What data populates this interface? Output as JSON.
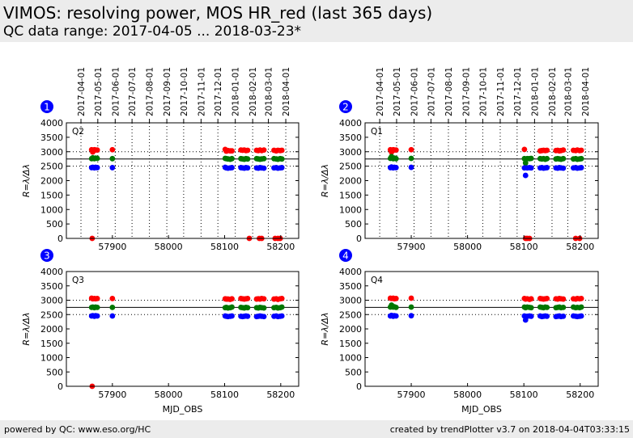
{
  "header": {
    "title": "VIMOS: resolving power, MOS HR_red (last 365 days)",
    "subtitle": "QC data range: 2017-04-05 ... 2018-03-23*"
  },
  "footer": {
    "left": "powered by QC: www.eso.org/HC",
    "right": "created by trendPlotter v3.7 on 2018-04-04T03:33:15"
  },
  "colors": {
    "red": "#ff0000",
    "green": "#007700",
    "blue": "#0000ff",
    "badge": "#0000ff"
  },
  "chart_data": [
    {
      "type": "scatter",
      "panel_number": "1",
      "quadrant_label": "Q2",
      "xlabel": "",
      "ylabel": "R=λ/Δλ",
      "xlim": [
        57818,
        58232
      ],
      "ylim": [
        0,
        4000
      ],
      "xticks": [
        57900,
        58000,
        58100,
        58200
      ],
      "yticks": [
        0,
        500,
        1000,
        1500,
        2000,
        2500,
        3000,
        3500,
        4000
      ],
      "date_ticks": [
        "2017-04-01",
        "2017-05-01",
        "2017-06-01",
        "2017-07-01",
        "2017-08-01",
        "2017-09-01",
        "2017-10-01",
        "2017-11-01",
        "2017-12-01",
        "2018-01-01",
        "2018-02-01",
        "2018-03-01",
        "2018-04-01"
      ],
      "date_ticks_mjd": [
        57844,
        57874,
        57905,
        57935,
        57966,
        57997,
        58027,
        58058,
        58088,
        58119,
        58150,
        58178,
        58209
      ],
      "hlines_solid": [
        2750
      ],
      "hlines_dotted": [
        3000,
        2500
      ],
      "series": [
        {
          "color": "red",
          "x": [
            57863,
            57865,
            57868,
            57870,
            57873,
            57900,
            58101,
            58103,
            58106,
            58110,
            58113,
            58129,
            58132,
            58135,
            58138,
            58141,
            58157,
            58160,
            58163,
            58166,
            58170,
            58188,
            58192,
            58195,
            58199,
            58202,
            57864,
            58144,
            58162,
            58166,
            58190,
            58195,
            58199
          ],
          "y": [
            3070,
            2990,
            3070,
            3060,
            3060,
            3070,
            3080,
            3020,
            3040,
            3030,
            3030,
            3060,
            3050,
            3060,
            3040,
            3050,
            3050,
            3040,
            3060,
            3040,
            3060,
            3050,
            3030,
            3050,
            3040,
            3050,
            0,
            0,
            0,
            0,
            0,
            0,
            0
          ]
        },
        {
          "color": "green",
          "x": [
            57863,
            57865,
            57868,
            57870,
            57873,
            57900,
            58101,
            58103,
            58106,
            58110,
            58113,
            58129,
            58132,
            58135,
            58138,
            58141,
            58157,
            58160,
            58163,
            58166,
            58170,
            58188,
            58192,
            58195,
            58199,
            58202
          ],
          "y": [
            2760,
            2790,
            2760,
            2780,
            2770,
            2760,
            2770,
            2760,
            2750,
            2740,
            2760,
            2760,
            2750,
            2740,
            2760,
            2750,
            2760,
            2750,
            2740,
            2750,
            2760,
            2760,
            2750,
            2740,
            2760,
            2750
          ]
        },
        {
          "color": "blue",
          "x": [
            57863,
            57865,
            57868,
            57870,
            57873,
            57900,
            58101,
            58103,
            58106,
            58110,
            58113,
            58129,
            58132,
            58135,
            58138,
            58141,
            58157,
            58160,
            58163,
            58166,
            58170,
            58188,
            58192,
            58195,
            58199,
            58202
          ],
          "y": [
            2450,
            2460,
            2440,
            2460,
            2450,
            2450,
            2460,
            2440,
            2430,
            2440,
            2450,
            2450,
            2440,
            2430,
            2450,
            2440,
            2440,
            2430,
            2450,
            2440,
            2430,
            2440,
            2450,
            2430,
            2440,
            2450
          ]
        }
      ]
    },
    {
      "type": "scatter",
      "panel_number": "2",
      "quadrant_label": "Q1",
      "xlabel": "",
      "ylabel": "R=λ/Δλ",
      "xlim": [
        57818,
        58232
      ],
      "ylim": [
        0,
        4000
      ],
      "xticks": [
        57900,
        58000,
        58100,
        58200
      ],
      "yticks": [
        0,
        500,
        1000,
        1500,
        2000,
        2500,
        3000,
        3500,
        4000
      ],
      "date_ticks": [
        "2017-04-01",
        "2017-05-01",
        "2017-06-01",
        "2017-07-01",
        "2017-08-01",
        "2017-09-01",
        "2017-10-01",
        "2017-11-01",
        "2017-12-01",
        "2018-01-01",
        "2018-02-01",
        "2018-03-01",
        "2018-04-01"
      ],
      "date_ticks_mjd": [
        57844,
        57874,
        57905,
        57935,
        57966,
        57997,
        58027,
        58058,
        58088,
        58119,
        58150,
        58178,
        58209
      ],
      "hlines_solid": [
        2750
      ],
      "hlines_dotted": [
        3000,
        2500
      ],
      "series": [
        {
          "color": "red",
          "x": [
            57863,
            57865,
            57868,
            57870,
            57873,
            57900,
            58101,
            58129,
            58132,
            58135,
            58138,
            58141,
            58157,
            58160,
            58163,
            58166,
            58170,
            58188,
            58192,
            58195,
            58199,
            58202,
            58103,
            58106,
            58110,
            58192,
            58199
          ],
          "y": [
            3070,
            2990,
            3070,
            3060,
            3060,
            3070,
            3080,
            3030,
            3040,
            3050,
            3040,
            3050,
            3040,
            3050,
            3030,
            3040,
            3060,
            3050,
            3040,
            3060,
            3040,
            3050,
            0,
            0,
            0,
            0,
            0
          ]
        },
        {
          "color": "green",
          "x": [
            57863,
            57865,
            57868,
            57870,
            57873,
            57900,
            58101,
            58103,
            58106,
            58110,
            58113,
            58129,
            58132,
            58135,
            58138,
            58141,
            58157,
            58160,
            58163,
            58166,
            58170,
            58188,
            58192,
            58195,
            58199,
            58202
          ],
          "y": [
            2770,
            2830,
            2760,
            2780,
            2760,
            2770,
            2760,
            2610,
            2760,
            2760,
            2770,
            2760,
            2750,
            2760,
            2740,
            2760,
            2750,
            2760,
            2750,
            2740,
            2760,
            2750,
            2760,
            2740,
            2750,
            2760
          ]
        },
        {
          "color": "blue",
          "x": [
            57863,
            57865,
            57868,
            57870,
            57873,
            57900,
            58101,
            58103,
            58106,
            58110,
            58113,
            58129,
            58132,
            58135,
            58138,
            58141,
            58157,
            58160,
            58163,
            58166,
            58170,
            58188,
            58192,
            58195,
            58199,
            58202
          ],
          "y": [
            2450,
            2470,
            2440,
            2460,
            2450,
            2460,
            2440,
            2180,
            2440,
            2450,
            2440,
            2440,
            2450,
            2430,
            2440,
            2450,
            2440,
            2430,
            2450,
            2440,
            2430,
            2440,
            2450,
            2430,
            2440,
            2450
          ]
        }
      ]
    },
    {
      "type": "scatter",
      "panel_number": "3",
      "quadrant_label": "Q3",
      "xlabel": "MJD_OBS",
      "ylabel": "R=λ/Δλ",
      "xlim": [
        57818,
        58232
      ],
      "ylim": [
        0,
        4000
      ],
      "xticks": [
        57900,
        58000,
        58100,
        58200
      ],
      "yticks": [
        0,
        500,
        1000,
        1500,
        2000,
        2500,
        3000,
        3500,
        4000
      ],
      "hlines_solid": [
        2750
      ],
      "hlines_dotted": [
        3000,
        2500
      ],
      "series": [
        {
          "color": "red",
          "x": [
            57863,
            57865,
            57868,
            57870,
            57873,
            57900,
            58101,
            58103,
            58106,
            58110,
            58113,
            58129,
            58132,
            58135,
            58138,
            58141,
            58157,
            58160,
            58163,
            58166,
            58170,
            58188,
            58192,
            58195,
            58199,
            58202,
            57864
          ],
          "y": [
            3070,
            3050,
            3060,
            3050,
            3060,
            3060,
            3050,
            3040,
            3040,
            3030,
            3050,
            3060,
            3050,
            3040,
            3050,
            3060,
            3040,
            3050,
            3040,
            3060,
            3050,
            3040,
            3050,
            3030,
            3050,
            3060,
            0
          ]
        },
        {
          "color": "green",
          "x": [
            57863,
            57865,
            57868,
            57870,
            57873,
            57900,
            58101,
            58103,
            58106,
            58110,
            58113,
            58129,
            58132,
            58135,
            58138,
            58141,
            58157,
            58160,
            58163,
            58166,
            58170,
            58188,
            58192,
            58195,
            58199,
            58202
          ],
          "y": [
            2750,
            2760,
            2740,
            2760,
            2750,
            2750,
            2740,
            2750,
            2730,
            2740,
            2760,
            2750,
            2740,
            2730,
            2750,
            2740,
            2740,
            2730,
            2750,
            2740,
            2730,
            2740,
            2750,
            2730,
            2740,
            2760
          ]
        },
        {
          "color": "blue",
          "x": [
            57863,
            57865,
            57868,
            57870,
            57873,
            57900,
            58101,
            58103,
            58106,
            58110,
            58113,
            58129,
            58132,
            58135,
            58138,
            58141,
            58157,
            58160,
            58163,
            58166,
            58170,
            58188,
            58192,
            58195,
            58199,
            58202
          ],
          "y": [
            2450,
            2460,
            2440,
            2460,
            2450,
            2450,
            2450,
            2440,
            2430,
            2440,
            2450,
            2440,
            2430,
            2440,
            2450,
            2440,
            2430,
            2440,
            2450,
            2440,
            2430,
            2440,
            2450,
            2430,
            2440,
            2450
          ]
        }
      ]
    },
    {
      "type": "scatter",
      "panel_number": "4",
      "quadrant_label": "Q4",
      "xlabel": "MJD_OBS",
      "ylabel": "R=λ/Δλ",
      "xlim": [
        57818,
        58232
      ],
      "ylim": [
        0,
        4000
      ],
      "xticks": [
        57900,
        58000,
        58100,
        58200
      ],
      "yticks": [
        0,
        500,
        1000,
        1500,
        2000,
        2500,
        3000,
        3500,
        4000
      ],
      "hlines_solid": [
        2750
      ],
      "hlines_dotted": [
        3000,
        2500
      ],
      "series": [
        {
          "color": "red",
          "x": [
            57863,
            57865,
            57868,
            57870,
            57873,
            57900,
            58101,
            58103,
            58106,
            58110,
            58113,
            58129,
            58132,
            58135,
            58138,
            58141,
            58157,
            58160,
            58163,
            58166,
            58170,
            58188,
            58192,
            58195,
            58199,
            58202
          ],
          "y": [
            3070,
            3060,
            3070,
            3050,
            3060,
            3070,
            3060,
            3040,
            3050,
            3030,
            3050,
            3060,
            3050,
            3040,
            3050,
            3060,
            3050,
            3040,
            3060,
            3050,
            3040,
            3050,
            3040,
            3060,
            3050,
            3060
          ]
        },
        {
          "color": "green",
          "x": [
            57863,
            57865,
            57868,
            57870,
            57873,
            57900,
            58101,
            58103,
            58106,
            58110,
            58113,
            58129,
            58132,
            58135,
            58138,
            58141,
            58157,
            58160,
            58163,
            58166,
            58170,
            58188,
            58192,
            58195,
            58199,
            58202
          ],
          "y": [
            2760,
            2830,
            2760,
            2770,
            2750,
            2760,
            2760,
            2740,
            2760,
            2750,
            2740,
            2760,
            2750,
            2740,
            2760,
            2750,
            2740,
            2750,
            2760,
            2740,
            2750,
            2760,
            2740,
            2750,
            2740,
            2760
          ]
        },
        {
          "color": "blue",
          "x": [
            57863,
            57865,
            57868,
            57870,
            57873,
            57900,
            58101,
            58103,
            58106,
            58110,
            58113,
            58129,
            58132,
            58135,
            58138,
            58141,
            58157,
            58160,
            58163,
            58166,
            58170,
            58188,
            58192,
            58195,
            58199,
            58202
          ],
          "y": [
            2450,
            2470,
            2440,
            2460,
            2450,
            2460,
            2450,
            2310,
            2440,
            2450,
            2440,
            2450,
            2430,
            2440,
            2450,
            2440,
            2430,
            2440,
            2450,
            2430,
            2440,
            2450,
            2440,
            2430,
            2440,
            2450
          ]
        }
      ]
    }
  ]
}
